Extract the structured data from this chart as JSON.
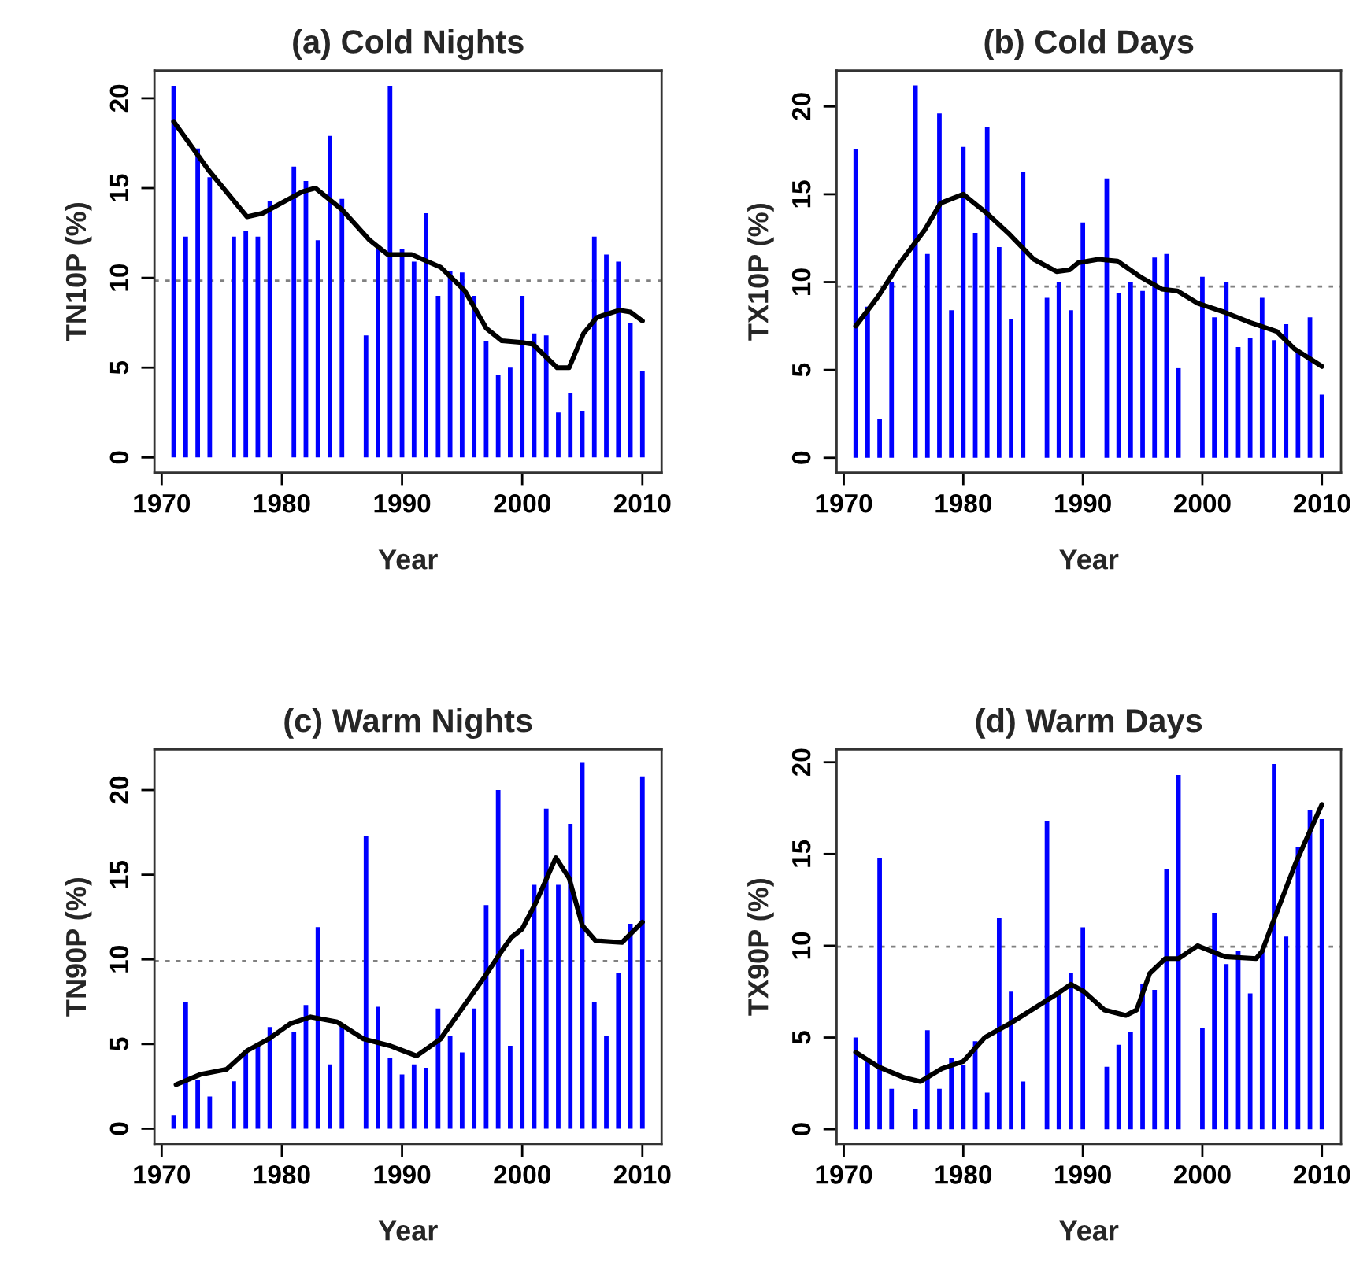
{
  "chart_data": [
    {
      "type": "bar",
      "title": "(a) Cold Nights",
      "xlabel": "Year",
      "ylabel": "TN10P (%)",
      "x": [
        1971,
        1972,
        1973,
        1974,
        1975,
        1976,
        1977,
        1978,
        1979,
        1980,
        1981,
        1982,
        1983,
        1984,
        1985,
        1986,
        1987,
        1988,
        1989,
        1990,
        1991,
        1992,
        1993,
        1994,
        1995,
        1996,
        1997,
        1998,
        1999,
        2000,
        2001,
        2002,
        2003,
        2004,
        2005,
        2006,
        2007,
        2008,
        2009,
        2010
      ],
      "series": [
        {
          "color": "#0000ff",
          "values": [
            20.7,
            12.3,
            17.2,
            15.6,
            null,
            12.3,
            12.6,
            12.3,
            14.3,
            null,
            16.2,
            15.4,
            12.1,
            17.9,
            14.4,
            null,
            6.8,
            11.8,
            20.7,
            11.6,
            10.9,
            13.6,
            9.0,
            10.4,
            10.3,
            9.0,
            6.5,
            4.6,
            5.0,
            9.0,
            6.9,
            6.8,
            2.5,
            3.6,
            2.6,
            12.3,
            11.3,
            10.9,
            7.5,
            4.8
          ]
        },
        {
          "type": "line",
          "color": "#000000",
          "x": [
            1971,
            1973.9,
            1977.1,
            1978.4,
            1981.7,
            1982.8,
            1985,
            1987.3,
            1988.8,
            1990.8,
            1993.2,
            1995.2,
            1997,
            1998.3,
            2000,
            2000.9,
            2002.9,
            2003.9,
            2005.1,
            2006.2,
            2008.1,
            2009,
            2010
          ],
          "values": [
            18.7,
            16.0,
            13.4,
            13.6,
            14.8,
            15.0,
            13.8,
            12.1,
            11.3,
            11.3,
            10.6,
            9.3,
            7.2,
            6.5,
            6.4,
            6.3,
            5.0,
            5.0,
            6.9,
            7.8,
            8.2,
            8.1,
            7.6
          ]
        }
      ],
      "xlim": [
        1969.4,
        2011.6
      ],
      "ylim": [
        -0.85,
        21.55
      ],
      "xticks": [
        1970,
        1980,
        1990,
        2000,
        2010
      ],
      "yticks": [
        0,
        5,
        10,
        15,
        20
      ],
      "ref_lines": [
        {
          "axis": "y",
          "value": 9.85,
          "color": "#808080",
          "line_style": "dotted"
        }
      ]
    },
    {
      "type": "bar",
      "title": "(b) Cold Days",
      "xlabel": "Year",
      "ylabel": "TX10P (%)",
      "x": [
        1971,
        1972,
        1973,
        1974,
        1975,
        1976,
        1977,
        1978,
        1979,
        1980,
        1981,
        1982,
        1983,
        1984,
        1985,
        1986,
        1987,
        1988,
        1989,
        1990,
        1991,
        1992,
        1993,
        1994,
        1995,
        1996,
        1997,
        1998,
        1999,
        2000,
        2001,
        2002,
        2003,
        2004,
        2005,
        2006,
        2007,
        2008,
        2009,
        2010
      ],
      "series": [
        {
          "color": "#0000ff",
          "values": [
            17.6,
            8.6,
            2.2,
            10.0,
            null,
            21.2,
            11.6,
            19.6,
            8.4,
            17.7,
            12.8,
            18.8,
            12.0,
            7.9,
            16.3,
            null,
            9.1,
            10.0,
            8.4,
            13.4,
            null,
            15.9,
            9.4,
            10.0,
            9.5,
            11.4,
            11.6,
            5.1,
            null,
            10.3,
            8.0,
            10.0,
            6.3,
            6.8,
            9.1,
            6.7,
            7.6,
            6.0,
            8.0,
            3.6
          ]
        },
        {
          "type": "line",
          "color": "#000000",
          "x": [
            1971,
            1972.9,
            1974.6,
            1976.8,
            1978.1,
            1980,
            1982,
            1983.9,
            1985.9,
            1987.8,
            1988.9,
            1989.6,
            1991.3,
            1992.9,
            1994.8,
            1996.6,
            1997.9,
            1999.6,
            2001.8,
            2004,
            2006.2,
            2007.7,
            2010
          ],
          "values": [
            7.5,
            9.2,
            11.0,
            13.0,
            14.5,
            15.0,
            13.9,
            12.7,
            11.3,
            10.6,
            10.7,
            11.1,
            11.3,
            11.2,
            10.3,
            9.6,
            9.5,
            8.8,
            8.3,
            7.7,
            7.2,
            6.2,
            5.2
          ]
        }
      ],
      "xlim": [
        1969.4,
        2011.6
      ],
      "ylim": [
        -0.85,
        22.05
      ],
      "xticks": [
        1970,
        1980,
        1990,
        2000,
        2010
      ],
      "yticks": [
        0,
        5,
        10,
        15,
        20
      ],
      "ref_lines": [
        {
          "axis": "y",
          "value": 9.75,
          "color": "#808080",
          "line_style": "dotted"
        }
      ]
    },
    {
      "type": "bar",
      "title": "(c) Warm Nights",
      "xlabel": "Year",
      "ylabel": "TN90P (%)",
      "x": [
        1971,
        1972,
        1973,
        1974,
        1975,
        1976,
        1977,
        1978,
        1979,
        1980,
        1981,
        1982,
        1983,
        1984,
        1985,
        1986,
        1987,
        1988,
        1989,
        1990,
        1991,
        1992,
        1993,
        1994,
        1995,
        1996,
        1997,
        1998,
        1999,
        2000,
        2001,
        2002,
        2003,
        2004,
        2005,
        2006,
        2007,
        2008,
        2009,
        2010
      ],
      "series": [
        {
          "color": "#0000ff",
          "values": [
            0.8,
            7.5,
            2.9,
            1.9,
            null,
            2.8,
            4.5,
            5.0,
            6.0,
            null,
            5.7,
            7.3,
            11.9,
            3.8,
            6.1,
            null,
            17.3,
            7.2,
            4.2,
            3.2,
            3.8,
            3.6,
            7.1,
            5.5,
            4.5,
            7.1,
            13.2,
            20.0,
            4.9,
            10.6,
            14.4,
            18.9,
            14.4,
            18.0,
            21.6,
            7.5,
            5.5,
            9.2,
            12.1,
            20.8
          ]
        },
        {
          "type": "line",
          "color": "#000000",
          "x": [
            1971.2,
            1973.2,
            1975.4,
            1977.1,
            1978.9,
            1980.7,
            1982.4,
            1984.6,
            1986.8,
            1989,
            1991.2,
            1993.2,
            1995.2,
            1996.9,
            1998.2,
            1999.1,
            2000,
            2001.1,
            2002.8,
            2003.9,
            2005,
            2006.1,
            2008.3,
            2010
          ],
          "values": [
            2.6,
            3.2,
            3.5,
            4.6,
            5.3,
            6.2,
            6.6,
            6.3,
            5.3,
            4.9,
            4.3,
            5.3,
            7.3,
            9.0,
            10.4,
            11.3,
            11.8,
            13.3,
            16.0,
            14.8,
            12.0,
            11.1,
            11.0,
            12.2
          ]
        }
      ],
      "xlim": [
        1969.4,
        2011.6
      ],
      "ylim": [
        -0.9,
        22.4
      ],
      "xticks": [
        1970,
        1980,
        1990,
        2000,
        2010
      ],
      "yticks": [
        0,
        5,
        10,
        15,
        20
      ],
      "ref_lines": [
        {
          "axis": "y",
          "value": 9.9,
          "color": "#808080",
          "line_style": "dotted"
        }
      ]
    },
    {
      "type": "bar",
      "title": "(d) Warm Days",
      "xlabel": "Year",
      "ylabel": "TX90P (%)",
      "x": [
        1971,
        1972,
        1973,
        1974,
        1975,
        1976,
        1977,
        1978,
        1979,
        1980,
        1981,
        1982,
        1983,
        1984,
        1985,
        1986,
        1987,
        1988,
        1989,
        1990,
        1991,
        1992,
        1993,
        1994,
        1995,
        1996,
        1997,
        1998,
        1999,
        2000,
        2001,
        2002,
        2003,
        2004,
        2005,
        2006,
        2007,
        2008,
        2009,
        2010
      ],
      "series": [
        {
          "color": "#0000ff",
          "values": [
            5.0,
            3.8,
            14.8,
            2.2,
            null,
            1.1,
            5.4,
            2.2,
            3.9,
            3.5,
            4.8,
            2.0,
            11.5,
            7.5,
            2.6,
            null,
            16.8,
            7.3,
            8.5,
            11.0,
            null,
            3.4,
            4.6,
            5.3,
            7.9,
            7.6,
            14.2,
            19.3,
            null,
            5.5,
            11.8,
            9.0,
            9.7,
            7.4,
            9.7,
            19.9,
            10.5,
            15.4,
            17.4,
            16.9
          ]
        },
        {
          "type": "line",
          "color": "#000000",
          "x": [
            1971,
            1972.9,
            1975.1,
            1976.4,
            1978.2,
            1980,
            1981.8,
            1984,
            1986.2,
            1987.9,
            1989,
            1990.1,
            1991.8,
            1993.6,
            1994.5,
            1995.6,
            1996.9,
            1998,
            1999.6,
            2001.9,
            2004.5,
            2005,
            2005.8,
            2007.8,
            2010
          ],
          "values": [
            4.2,
            3.4,
            2.8,
            2.6,
            3.3,
            3.7,
            5.0,
            5.8,
            6.7,
            7.4,
            7.9,
            7.5,
            6.5,
            6.2,
            6.5,
            8.5,
            9.3,
            9.3,
            10.0,
            9.4,
            9.3,
            9.7,
            11.1,
            14.5,
            17.7
          ]
        }
      ],
      "xlim": [
        1969.4,
        2011.6
      ],
      "ylim": [
        -0.8,
        20.7
      ],
      "xticks": [
        1970,
        1980,
        1990,
        2000,
        2010
      ],
      "yticks": [
        0,
        5,
        10,
        15,
        20
      ],
      "ref_lines": [
        {
          "axis": "y",
          "value": 9.95,
          "color": "#808080",
          "line_style": "dotted"
        }
      ]
    }
  ]
}
